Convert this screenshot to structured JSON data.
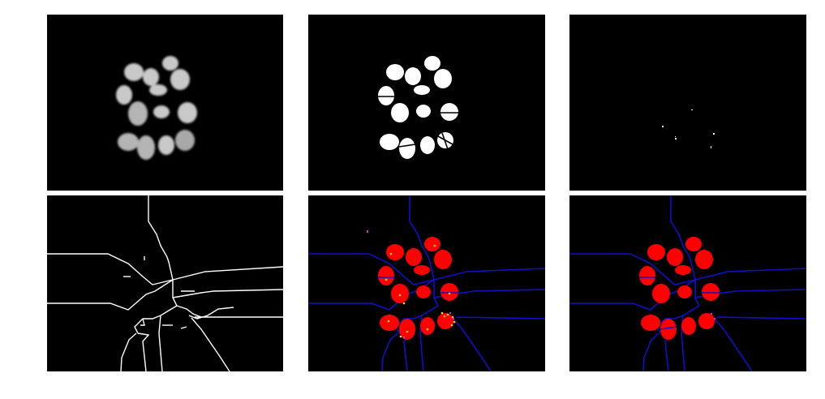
{
  "figure": {
    "panels": [
      {
        "id": "p1",
        "content": "grayscale-nuclei-image"
      },
      {
        "id": "p2",
        "content": "binary-mask-image"
      },
      {
        "id": "p3",
        "content": "sparse-points-image"
      },
      {
        "id": "p4",
        "content": "white-boundary-lines-image"
      },
      {
        "id": "p5",
        "content": "red-nuclei-blue-boundaries-with-markers-image"
      },
      {
        "id": "p6",
        "content": "red-nuclei-blue-boundaries-image"
      }
    ],
    "colors": {
      "background": "#000000",
      "nucleus_gray": "#bdbdbd",
      "mask_white": "#ffffff",
      "nucleus_red": "#ff0000",
      "boundary_blue": "#0000c8",
      "marker_yellow": "#ffd700",
      "marker_magenta": "#c040c0"
    }
  }
}
